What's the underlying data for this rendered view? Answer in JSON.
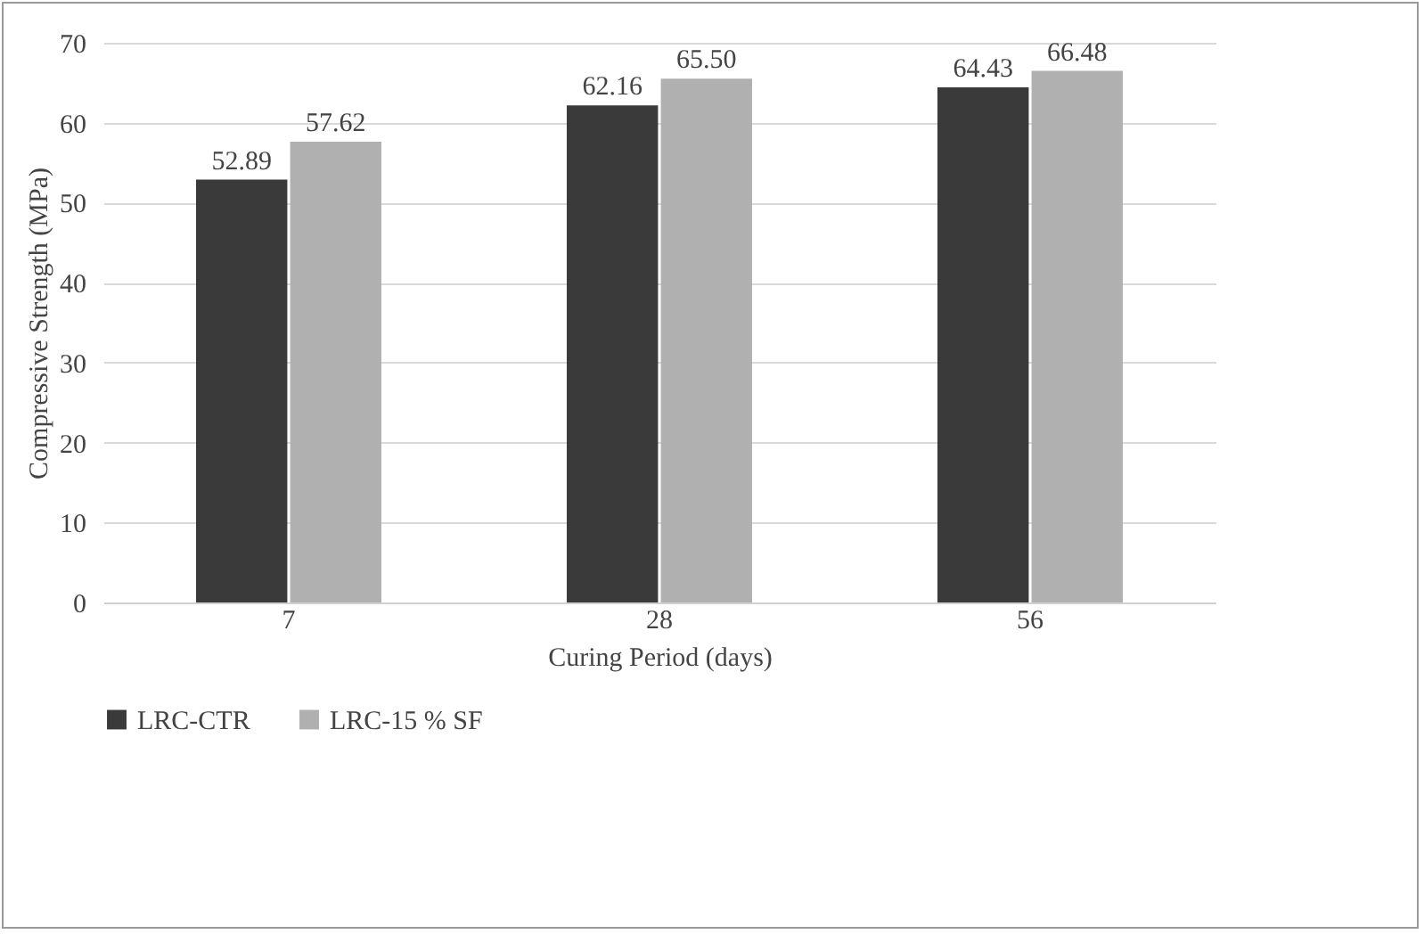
{
  "chart_data": {
    "type": "bar",
    "xlabel": "Curing Period (days)",
    "ylabel": "Compressive Strength (MPa)",
    "categories": [
      "7",
      "28",
      "56"
    ],
    "series": [
      {
        "name": "LRC-CTR",
        "color": "#3a3a3a",
        "values": [
          52.89,
          62.16,
          64.43
        ],
        "value_labels": [
          "52.89",
          "62.16",
          "64.43"
        ]
      },
      {
        "name": "LRC-15 % SF",
        "color": "#b0b0b0",
        "values": [
          57.62,
          65.5,
          66.48
        ],
        "value_labels": [
          "57.62",
          "65.50",
          "66.48"
        ]
      }
    ],
    "ylim": [
      0,
      70
    ],
    "yticks": [
      0,
      10,
      20,
      30,
      40,
      50,
      60,
      70
    ],
    "grid": "y",
    "legend": "bottom"
  }
}
